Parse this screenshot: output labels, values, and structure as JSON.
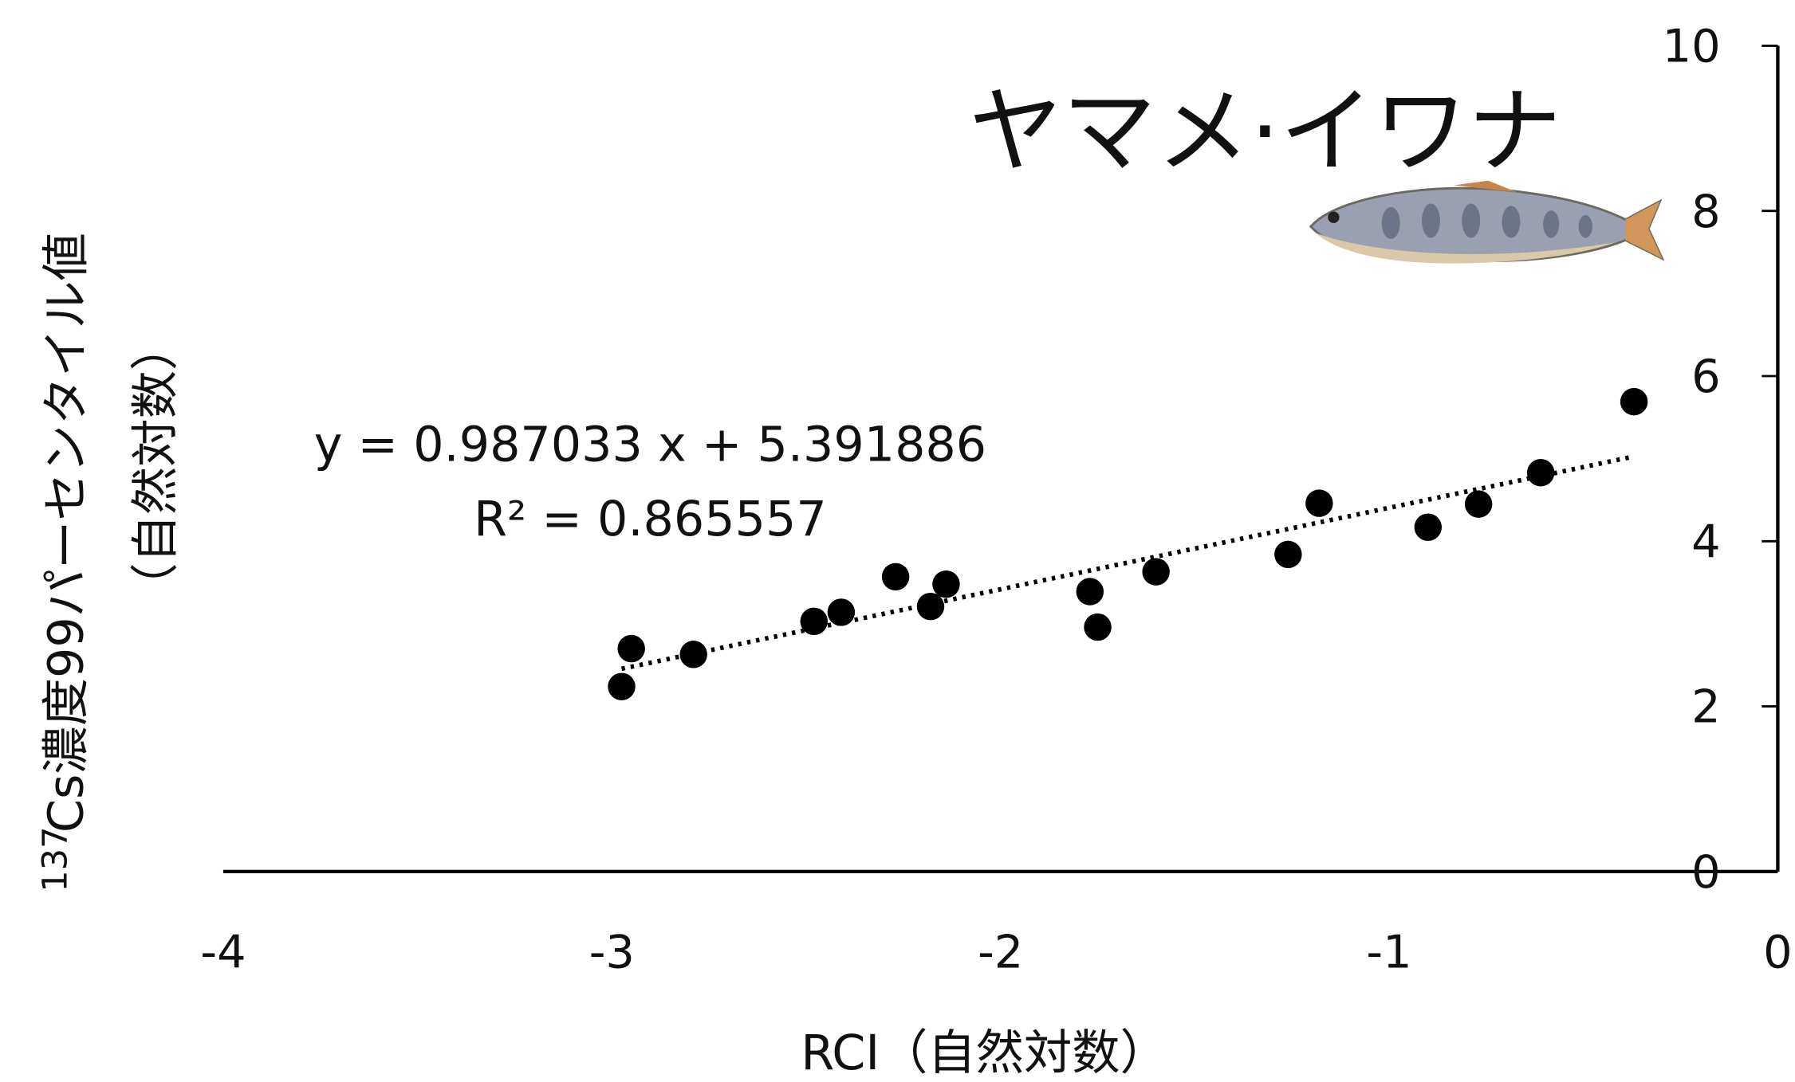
{
  "chart_data": {
    "type": "scatter",
    "annotation": "ヤマメ·イワナ",
    "xlabel": "RCI（自然対数）",
    "ylabel_sup": "137",
    "ylabel": "Cs濃度99パーセンタイル値",
    "ylabel2": "（自然対数）",
    "x": [
      -2.975,
      -2.95,
      -2.79,
      -2.48,
      -2.41,
      -2.27,
      -2.18,
      -2.14,
      -1.77,
      -1.75,
      -1.6,
      -1.26,
      -1.18,
      -0.9,
      -0.77,
      -0.61,
      -0.37
    ],
    "values": [
      2.24,
      2.7,
      2.63,
      3.03,
      3.14,
      3.57,
      3.21,
      3.48,
      3.39,
      2.96,
      3.63,
      3.84,
      4.46,
      4.17,
      4.45,
      4.83,
      5.69
    ],
    "color": "#000000",
    "trendline": {
      "slope": 0.987033,
      "intercept": 5.391886,
      "label": "y = 0.987033 x + 5.391886",
      "r2_label": "R² = 0.865557"
    },
    "xlim": [
      -4,
      0
    ],
    "xticks": [
      -4,
      -3,
      -2,
      -1,
      0
    ],
    "ylim": [
      0,
      10
    ],
    "yticks": [
      0,
      2,
      4,
      6,
      8,
      10
    ]
  }
}
